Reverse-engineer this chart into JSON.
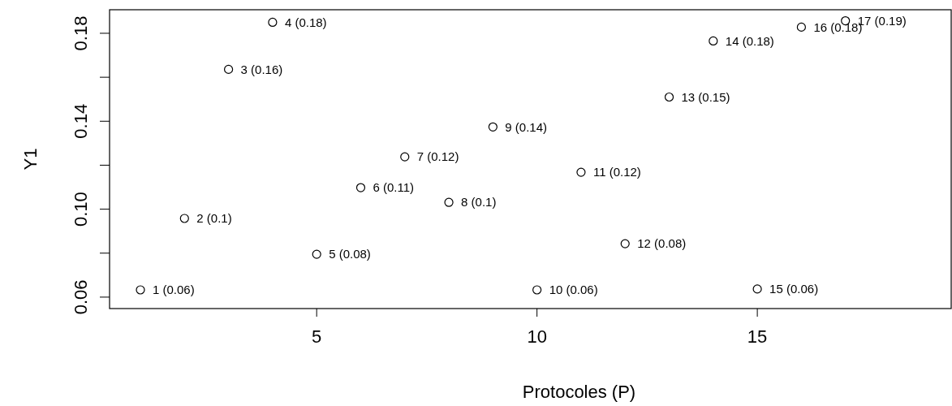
{
  "chart_data": {
    "type": "scatter",
    "xlabel": "Protocoles (P)",
    "ylabel": "Y1",
    "x": [
      1,
      2,
      3,
      4,
      5,
      6,
      7,
      8,
      9,
      10,
      11,
      12,
      13,
      14,
      15,
      16,
      17
    ],
    "series": [
      {
        "color": "#000000",
        "values": [
          0.0633,
          0.0958,
          0.1636,
          0.185,
          0.0795,
          0.1098,
          0.1238,
          0.1031,
          0.1374,
          0.0633,
          0.1168,
          0.0843,
          0.151,
          0.1765,
          0.0637,
          0.1828,
          0.1857
        ],
        "value_labels": [
          "1 (0.06)",
          "2 (0.1)",
          "3 (0.16)",
          "4 (0.18)",
          "5 (0.08)",
          "6 (0.11)",
          "7 (0.12)",
          "8 (0.1)",
          "9 (0.14)",
          "10 (0.06)",
          "11 (0.12)",
          "12 (0.08)",
          "13 (0.15)",
          "14 (0.18)",
          "15 (0.06)",
          "16 (0.18)",
          "17 (0.19)"
        ]
      }
    ],
    "xlim": [
      0.3,
      19.4
    ],
    "xticks": [
      5,
      10,
      15
    ],
    "ylim": [
      0.0548,
      0.1907
    ],
    "yticks": [
      0.06,
      {
        "value": 0.08,
        "label": null
      },
      {
        "value": 0.1,
        "label": "0.10"
      },
      {
        "value": 0.12,
        "label": null
      },
      0.14,
      {
        "value": 0.16,
        "label": null
      },
      0.18
    ],
    "grid": false,
    "marker": "circle"
  }
}
